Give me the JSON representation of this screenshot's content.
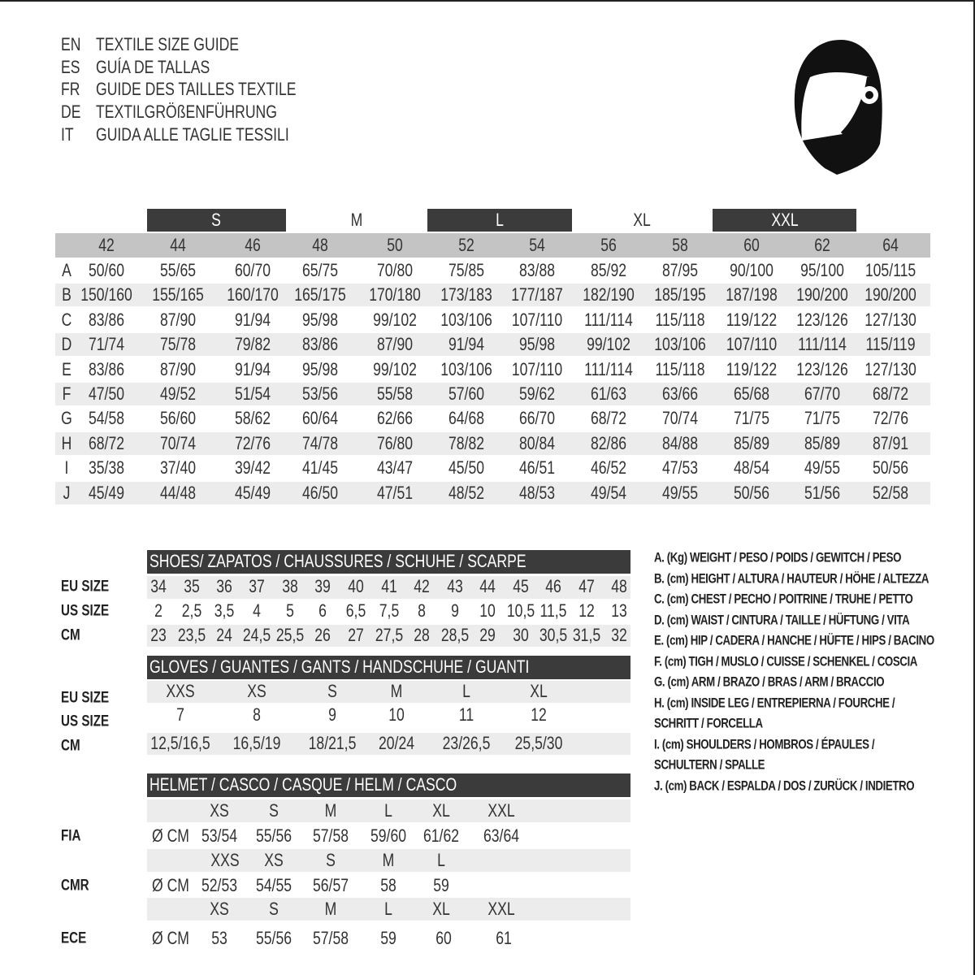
{
  "titles": [
    {
      "lang": "EN",
      "text": "TEXTILE SIZE GUIDE"
    },
    {
      "lang": "ES",
      "text": "GUÍA DE TALLAS"
    },
    {
      "lang": "FR",
      "text": "GUIDE DES TAILLES TEXTILE"
    },
    {
      "lang": "DE",
      "text": "TEXTILGRÖßENFÜHRUNG"
    },
    {
      "lang": "IT",
      "text": "GUIDA ALLE TAGLIE TESSILI"
    }
  ],
  "icon": "helmet-icon",
  "textile": {
    "size_groups": [
      "S",
      "M",
      "L",
      "XL",
      "XXL"
    ],
    "eu_sizes": [
      "42",
      "44",
      "46",
      "48",
      "50",
      "52",
      "54",
      "56",
      "58",
      "60",
      "62",
      "64"
    ],
    "rows": [
      {
        "key": "A",
        "values": [
          "50/60",
          "55/65",
          "60/70",
          "65/75",
          "70/80",
          "75/85",
          "83/88",
          "85/92",
          "87/95",
          "90/100",
          "95/100",
          "105/115"
        ]
      },
      {
        "key": "B",
        "values": [
          "150/160",
          "155/165",
          "160/170",
          "165/175",
          "170/180",
          "173/183",
          "177/187",
          "182/190",
          "185/195",
          "187/198",
          "190/200",
          "190/200"
        ]
      },
      {
        "key": "C",
        "values": [
          "83/86",
          "87/90",
          "91/94",
          "95/98",
          "99/102",
          "103/106",
          "107/110",
          "111/114",
          "115/118",
          "119/122",
          "123/126",
          "127/130"
        ]
      },
      {
        "key": "D",
        "values": [
          "71/74",
          "75/78",
          "79/82",
          "83/86",
          "87/90",
          "91/94",
          "95/98",
          "99/102",
          "103/106",
          "107/110",
          "111/114",
          "115/119"
        ]
      },
      {
        "key": "E",
        "values": [
          "83/86",
          "87/90",
          "91/94",
          "95/98",
          "99/102",
          "103/106",
          "107/110",
          "111/114",
          "115/118",
          "119/122",
          "123/126",
          "127/130"
        ]
      },
      {
        "key": "F",
        "values": [
          "47/50",
          "49/52",
          "51/54",
          "53/56",
          "55/58",
          "57/60",
          "59/62",
          "61/63",
          "63/66",
          "65/68",
          "67/70",
          "68/72"
        ]
      },
      {
        "key": "G",
        "values": [
          "54/58",
          "56/60",
          "58/62",
          "60/64",
          "62/66",
          "64/68",
          "66/70",
          "68/72",
          "70/74",
          "71/75",
          "71/75",
          "72/76"
        ]
      },
      {
        "key": "H",
        "values": [
          "68/72",
          "70/74",
          "72/76",
          "74/78",
          "76/80",
          "78/82",
          "80/84",
          "82/86",
          "84/88",
          "85/89",
          "85/89",
          "87/91"
        ]
      },
      {
        "key": "I",
        "values": [
          "35/38",
          "37/40",
          "39/42",
          "41/45",
          "43/47",
          "45/50",
          "46/51",
          "46/52",
          "47/53",
          "48/54",
          "49/55",
          "50/56"
        ]
      },
      {
        "key": "J",
        "values": [
          "45/49",
          "44/48",
          "45/49",
          "46/50",
          "47/51",
          "48/52",
          "48/53",
          "49/54",
          "49/55",
          "50/56",
          "51/56",
          "52/58"
        ]
      }
    ]
  },
  "shoes": {
    "title": "SHOES/ ZAPATOS / CHAUSSURES / SCHUHE / SCARPE",
    "rows": [
      {
        "label": "EU SIZE",
        "values": [
          "34",
          "35",
          "36",
          "37",
          "38",
          "39",
          "40",
          "41",
          "42",
          "43",
          "44",
          "45",
          "46",
          "47",
          "48"
        ]
      },
      {
        "label": "US SIZE",
        "values": [
          "2",
          "2,5",
          "3,5",
          "4",
          "5",
          "6",
          "6,5",
          "7,5",
          "8",
          "9",
          "10",
          "10,5",
          "11,5",
          "12",
          "13"
        ]
      },
      {
        "label": "CM",
        "values": [
          "23",
          "23,5",
          "24",
          "24,5",
          "25,5",
          "26",
          "27",
          "27,5",
          "28",
          "28,5",
          "29",
          "30",
          "30,5",
          "31,5",
          "32"
        ]
      }
    ]
  },
  "gloves": {
    "title": "GLOVES / GUANTES / GANTS / HANDSCHUHE / GUANTI",
    "rows": [
      {
        "label": "EU SIZE",
        "values": [
          "XXS",
          "XS",
          "S",
          "M",
          "L",
          "XL"
        ]
      },
      {
        "label": "US SIZE",
        "values": [
          "7",
          "8",
          "9",
          "10",
          "11",
          "12"
        ]
      },
      {
        "label": "CM",
        "values": [
          "12,5/16,5",
          "16,5/19",
          "18/21,5",
          "20/24",
          "23/26,5",
          "25,5/30"
        ]
      }
    ]
  },
  "helmet": {
    "title": "HELMET / CASCO / CASQUE / HELM / CASCO",
    "unit": "Ø CM",
    "standards": [
      {
        "label": "FIA",
        "sizes": [
          "XS",
          "S",
          "M",
          "L",
          "XL",
          "XXL"
        ],
        "values": [
          "53/54",
          "55/56",
          "57/58",
          "59/60",
          "61/62",
          "63/64"
        ]
      },
      {
        "label": "CMR",
        "sizes": [
          "XXS",
          "XS",
          "S",
          "M",
          "L"
        ],
        "values": [
          "52/53",
          "54/55",
          "56/57",
          "58",
          "59"
        ]
      },
      {
        "label": "ECE",
        "sizes": [
          "XS",
          "S",
          "M",
          "L",
          "XL",
          "XXL"
        ],
        "values": [
          "53",
          "55/56",
          "57/58",
          "59",
          "60",
          "61"
        ]
      }
    ]
  },
  "legend": [
    "A. (Kg) WEIGHT / PESO / POIDS / GEWITCH / PESO",
    "B. (cm) HEIGHT / ALTURA / HAUTEUR / HÖHE / ALTEZZA",
    "C. (cm) CHEST / PECHO / POITRINE / TRUHE / PETTO",
    "D. (cm) WAIST / CINTURA / TAILLE / HÜFTUNG / VITA",
    "E. (cm) HIP / CADERA / HANCHE / HÜFTE / HIPS /  BACINO",
    "F.  (cm) TIGH / MUSLO / CUISSE / SCHENKEL / COSCIA",
    "G. (cm) ARM  / BRAZO / BRAS / ARM / BRACCIO",
    "H. (cm) INSIDE LEG / ENTREPIERNA / FOURCHE /",
    "SCHRITT / FORCELLA",
    "I.  (cm) SHOULDERS / HOMBROS / ÉPAULES /",
    "SCHULTERN / SPALLE",
    "J. (cm) BACK / ESPALDA / DOS / ZURÜCK / INDIETRO"
  ],
  "colors": {
    "dark_band": "#3b3b3b",
    "header_gray": "#c4c4c4",
    "row_gray": "#ececec"
  }
}
